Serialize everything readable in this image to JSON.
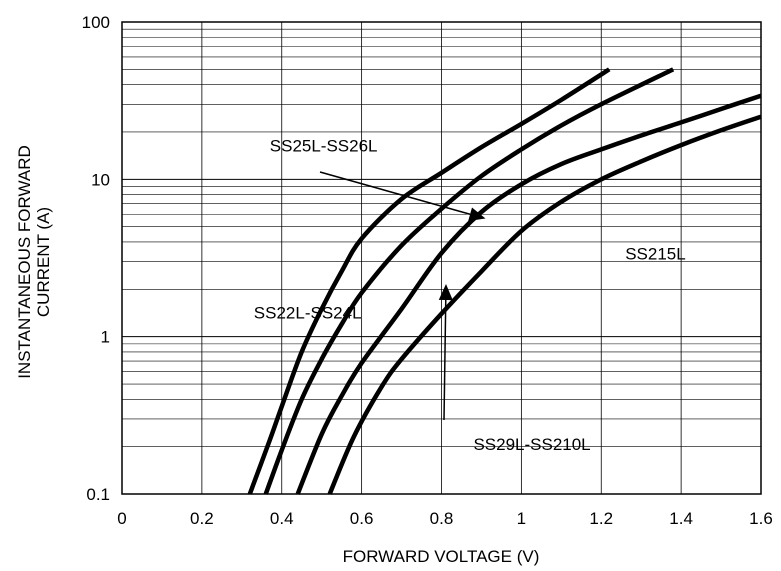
{
  "chart_data": {
    "type": "line",
    "title": "",
    "xlabel": "FORWARD VOLTAGE (V)",
    "ylabel_lines": [
      "INSTANTANEOUS FORWARD",
      "CURRENT (A)"
    ],
    "xlim": [
      0,
      1.6
    ],
    "ylim": [
      0.1,
      100
    ],
    "y_scale": "log",
    "grid": true,
    "x_ticks": [
      {
        "value": 0,
        "label": "0"
      },
      {
        "value": 0.2,
        "label": "0.2"
      },
      {
        "value": 0.4,
        "label": "0.4"
      },
      {
        "value": 0.6,
        "label": "0.6"
      },
      {
        "value": 0.8,
        "label": "0.8"
      },
      {
        "value": 1.0,
        "label": "1"
      },
      {
        "value": 1.2,
        "label": "1.2"
      },
      {
        "value": 1.4,
        "label": "1.4"
      },
      {
        "value": 1.6,
        "label": "1.6"
      }
    ],
    "y_ticks": [
      {
        "value": 0.1,
        "label": "0.1"
      },
      {
        "value": 1,
        "label": "1"
      },
      {
        "value": 10,
        "label": "10"
      },
      {
        "value": 100,
        "label": "100"
      }
    ],
    "series": [
      {
        "name": "SS22L-SS24L",
        "points": [
          [
            0.32,
            0.1
          ],
          [
            0.37,
            0.22
          ],
          [
            0.4,
            0.36
          ],
          [
            0.45,
            0.8
          ],
          [
            0.5,
            1.5
          ],
          [
            0.55,
            2.6
          ],
          [
            0.6,
            4.2
          ],
          [
            0.7,
            7.5
          ],
          [
            0.8,
            11
          ],
          [
            0.9,
            16
          ],
          [
            1.0,
            22.5
          ],
          [
            1.1,
            32
          ],
          [
            1.22,
            50
          ]
        ]
      },
      {
        "name": "SS25L-SS26L",
        "points": [
          [
            0.36,
            0.1
          ],
          [
            0.4,
            0.19
          ],
          [
            0.45,
            0.4
          ],
          [
            0.5,
            0.72
          ],
          [
            0.55,
            1.2
          ],
          [
            0.6,
            1.9
          ],
          [
            0.7,
            3.8
          ],
          [
            0.8,
            6.5
          ],
          [
            0.9,
            10.5
          ],
          [
            1.0,
            15.5
          ],
          [
            1.1,
            22
          ],
          [
            1.2,
            30
          ],
          [
            1.38,
            50
          ]
        ]
      },
      {
        "name": "SS29L-SS210L",
        "points": [
          [
            0.44,
            0.1
          ],
          [
            0.5,
            0.24
          ],
          [
            0.55,
            0.42
          ],
          [
            0.6,
            0.68
          ],
          [
            0.7,
            1.5
          ],
          [
            0.8,
            3.4
          ],
          [
            0.9,
            6.2
          ],
          [
            1.0,
            9.3
          ],
          [
            1.1,
            12.5
          ],
          [
            1.2,
            15.5
          ],
          [
            1.3,
            19
          ],
          [
            1.4,
            23
          ],
          [
            1.5,
            28
          ],
          [
            1.6,
            34
          ]
        ]
      },
      {
        "name": "SS215L",
        "points": [
          [
            0.52,
            0.1
          ],
          [
            0.58,
            0.23
          ],
          [
            0.65,
            0.48
          ],
          [
            0.7,
            0.72
          ],
          [
            0.8,
            1.4
          ],
          [
            0.9,
            2.6
          ],
          [
            1.0,
            4.7
          ],
          [
            1.1,
            7.2
          ],
          [
            1.2,
            10
          ],
          [
            1.3,
            13
          ],
          [
            1.4,
            16.5
          ],
          [
            1.5,
            20.5
          ],
          [
            1.6,
            25
          ]
        ]
      }
    ],
    "annotations": [
      {
        "text": "SS25L-SS26L",
        "label_x": 0.37,
        "label_y": 15,
        "arrow_from": [
          0.8,
          8.5
        ],
        "arrow_to": [
          0.8,
          5.8
        ]
      },
      {
        "text": "SS22L-SS24L",
        "label_x": 0.33,
        "label_y": 1.3,
        "arrow_from": null,
        "arrow_to": null
      },
      {
        "text": "SS215L",
        "label_x": 1.26,
        "label_y": 3.1,
        "arrow_from": null,
        "arrow_to": null
      },
      {
        "text": "SS29L-SS210L",
        "label_x": 0.88,
        "label_y": 0.19,
        "arrow_from": [
          0.82,
          0.26
        ],
        "arrow_to": [
          0.82,
          1.6
        ]
      }
    ]
  }
}
